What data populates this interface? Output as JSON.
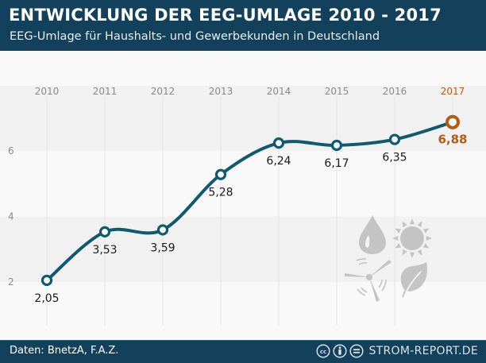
{
  "header": {
    "title": "ENTWICKLUNG DER EEG-UMLAGE 2010 - 2017",
    "subtitle": "EEG-Umlage für Haushalts- und Gewerbekunden in Deutschland"
  },
  "footer": {
    "source": "Daten: BnetzA, F.A.Z.",
    "brand": "STROM-REPORT.DE",
    "license_icons": [
      "creative-commons-icon",
      "attribution-icon",
      "no-derivatives-icon"
    ]
  },
  "decor_icons": [
    "water-drop-icon",
    "sun-icon",
    "wind-turbine-icon",
    "leaf-icon"
  ],
  "colors": {
    "header_bg": "#13405a",
    "line": "#0f5a6e",
    "highlight": "#b65a12",
    "axis_text": "#8a8a8a",
    "label_text": "#1a1a1a"
  },
  "chart_data": {
    "type": "line",
    "title": "ENTWICKLUNG DER EEG-UMLAGE 2010 - 2017",
    "subtitle": "EEG-Umlage für Haushalts- und Gewerbekunden in Deutschland",
    "xlabel": "",
    "ylabel": "",
    "x": [
      "2010",
      "2011",
      "2012",
      "2013",
      "2014",
      "2015",
      "2016",
      "2017"
    ],
    "series": [
      {
        "name": "EEG-Umlage",
        "values": [
          2.05,
          3.53,
          3.59,
          5.28,
          6.24,
          6.17,
          6.35,
          6.88
        ],
        "labels": [
          "2,05",
          "3,53",
          "3,59",
          "5,28",
          "6,24",
          "6,17",
          "6,35",
          "6,88"
        ]
      }
    ],
    "highlight_index": 7,
    "yticks": [
      2,
      4,
      6
    ],
    "ytick_labels": [
      "2",
      "4",
      "6"
    ],
    "ylim": [
      1.0,
      7.9
    ],
    "grid": "alternating horizontal bands, vertical lines per year",
    "legend": "none",
    "curve": "smooth"
  }
}
